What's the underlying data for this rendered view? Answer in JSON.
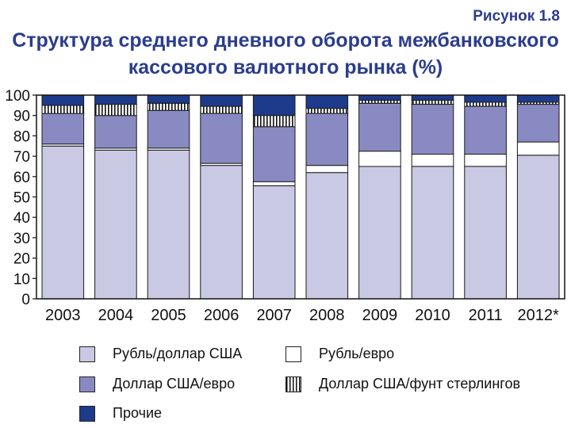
{
  "figure_label": "Рисунок 1.8",
  "title_lines": [
    "Структура среднего дневного оборота межбанковского",
    "кассового валютного рынка (%)"
  ],
  "colors": {
    "rub_usd": "#c9c9e3",
    "rub_eur": "#ffffff",
    "usd_eur": "#8a8ac2",
    "usd_gbp": "#ffffff",
    "other": "#1e3a8a"
  },
  "chart_data": {
    "type": "bar",
    "stacked": true,
    "title": "Структура среднего дневного оборота межбанковского кассового валютного рынка (%)",
    "categories": [
      "2003",
      "2004",
      "2005",
      "2006",
      "2007",
      "2008",
      "2009",
      "2010",
      "2011",
      "2012*"
    ],
    "ylim": [
      0,
      100
    ],
    "yticks": [
      0,
      10,
      20,
      30,
      40,
      50,
      60,
      70,
      80,
      90,
      100
    ],
    "grid": false,
    "series": [
      {
        "name": "Рубль/доллар США",
        "key": "rub_usd",
        "pattern": "solid",
        "values": [
          75,
          73,
          73,
          65.5,
          55.5,
          62,
          65,
          65,
          65,
          70.5
        ]
      },
      {
        "name": "Рубль/евро",
        "key": "rub_eur",
        "pattern": "solid",
        "values": [
          1,
          1,
          1,
          1,
          2,
          3.5,
          7.5,
          6,
          6,
          6.5
        ]
      },
      {
        "name": "Доллар США/евро",
        "key": "usd_eur",
        "pattern": "solid",
        "values": [
          15,
          16,
          18.5,
          24.5,
          27,
          25.5,
          23.5,
          24.5,
          23.5,
          18.5
        ]
      },
      {
        "name": "Доллар США/фунт стерлингов",
        "key": "usd_gbp",
        "pattern": "vstripes",
        "values": [
          4,
          5.5,
          3.5,
          3.5,
          5.5,
          2.5,
          1.5,
          2,
          2,
          1
        ]
      },
      {
        "name": "Прочие",
        "key": "other",
        "pattern": "solid",
        "values": [
          5,
          4.5,
          4,
          5.5,
          10,
          6.5,
          2.5,
          2.5,
          3.5,
          3.5
        ]
      }
    ],
    "legend": {
      "placement": "bottom",
      "items": [
        {
          "label": "Рубль/доллар США",
          "key": "rub_usd",
          "pattern": "solid"
        },
        {
          "label": "Рубль/евро",
          "key": "rub_eur",
          "pattern": "solid"
        },
        {
          "label": "Доллар США/евро",
          "key": "usd_eur",
          "pattern": "solid"
        },
        {
          "label": "Доллар США/фунт стерлингов",
          "key": "usd_gbp",
          "pattern": "vstripes"
        },
        {
          "label": "Прочие",
          "key": "other",
          "pattern": "solid"
        }
      ]
    }
  }
}
